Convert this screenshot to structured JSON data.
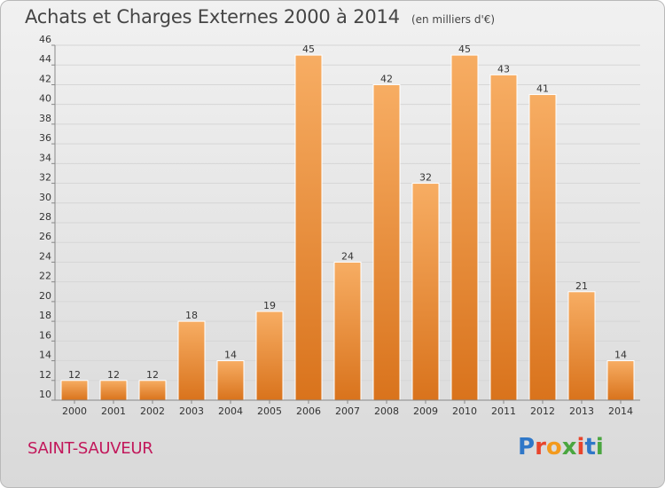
{
  "header": {
    "title": "Achats et Charges Externes 2000 à 2014",
    "subtitle": "(en milliers d'€)"
  },
  "footer": {
    "commune": "SAINT-SAUVEUR",
    "logo": {
      "text": "Proxiti",
      "letter_colors": [
        "#2f77c8",
        "#e8452c",
        "#f39a1d",
        "#4aa63f",
        "#e8452c",
        "#2f77c8",
        "#4aa63f"
      ]
    }
  },
  "colors": {
    "bar_light": "#f7ad63",
    "bar_dark": "#d9731c",
    "grid": "#d6d6d6",
    "text": "#333333",
    "commune": "#c2185b"
  },
  "chart_data": {
    "type": "bar",
    "categories": [
      "2000",
      "2001",
      "2002",
      "2003",
      "2004",
      "2005",
      "2006",
      "2007",
      "2008",
      "2009",
      "2010",
      "2011",
      "2012",
      "2013",
      "2014"
    ],
    "values": [
      12,
      12,
      12,
      18,
      14,
      19,
      45,
      24,
      42,
      32,
      45,
      43,
      41,
      21,
      14
    ],
    "ylim": [
      10,
      46
    ],
    "yticks": [
      10,
      12,
      14,
      16,
      18,
      20,
      22,
      24,
      26,
      28,
      30,
      32,
      34,
      36,
      38,
      40,
      42,
      44,
      46
    ],
    "grid": true,
    "data_labels": true
  }
}
